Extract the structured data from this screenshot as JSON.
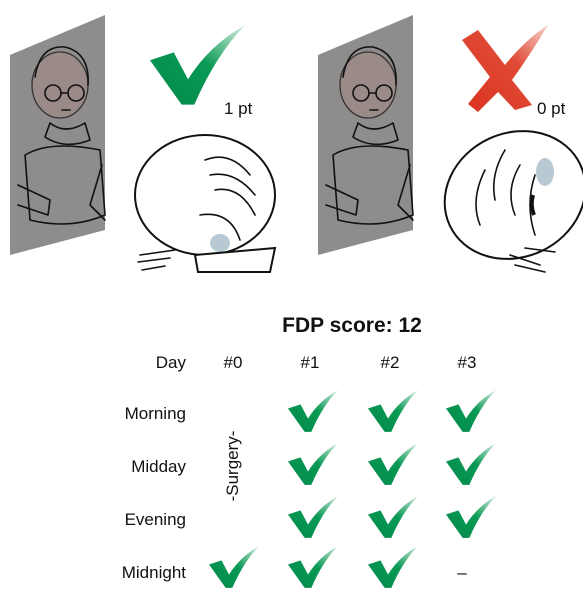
{
  "panels": [
    {
      "score_label": "1 pt"
    },
    {
      "score_label": "0 pt"
    }
  ],
  "table": {
    "title": "FDP score: 12",
    "header": [
      "Day",
      "#0",
      "#1",
      "#2",
      "#3"
    ],
    "rows": [
      "Morning",
      "Midday",
      "Evening",
      "Midnight"
    ],
    "surgery_label": "-Surgery-",
    "missing_mark": "–"
  }
}
